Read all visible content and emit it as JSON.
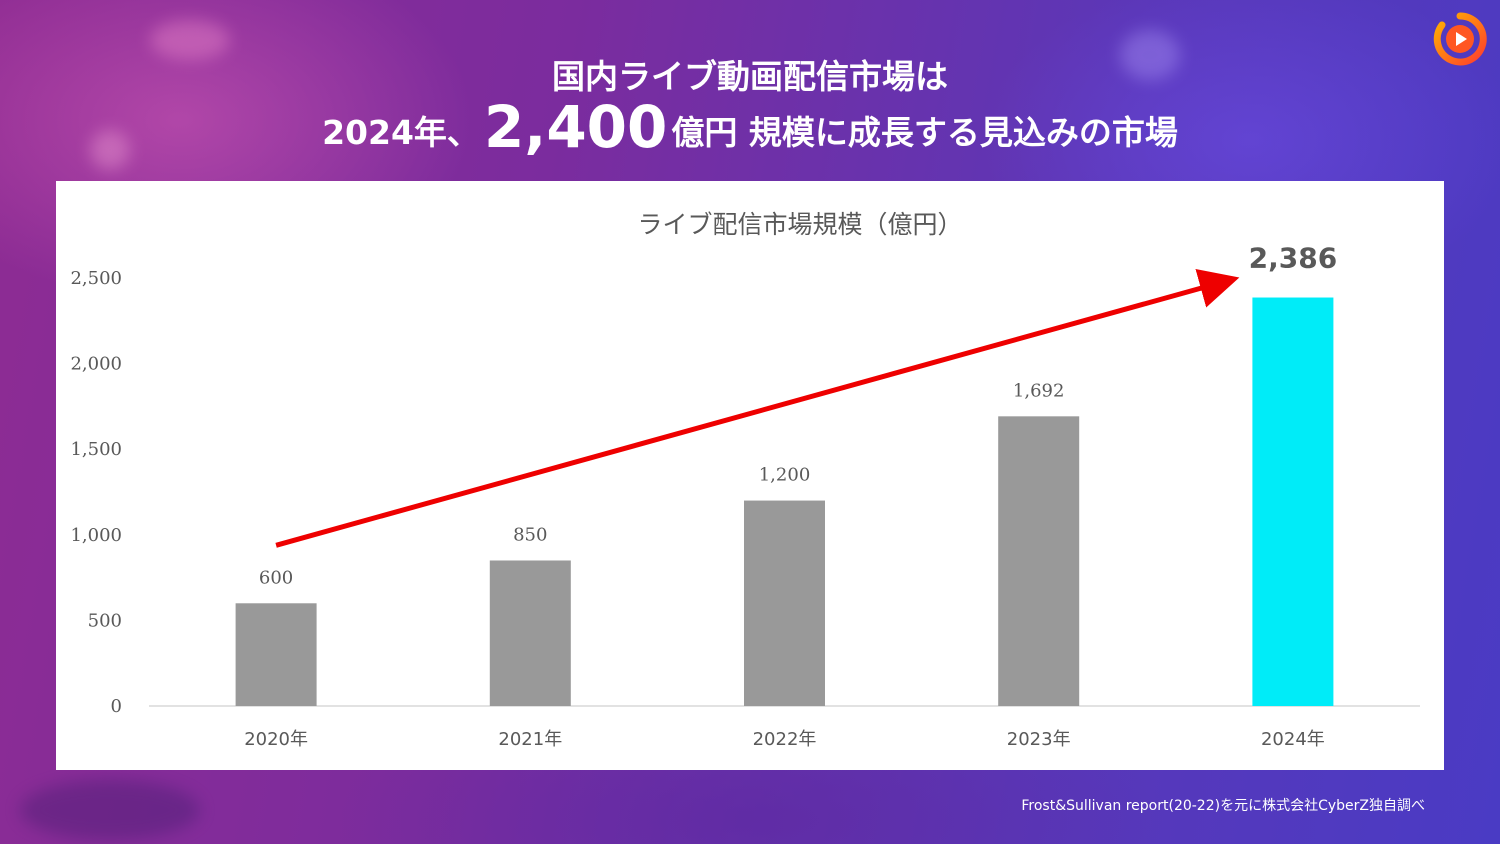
{
  "headline": {
    "line1": "国内ライブ動画配信市場は",
    "line2_prefix": "2024年、",
    "line2_big": "2,400",
    "line2_unit": "億円",
    "line2_suffix": "規模に成長する見込みの市場"
  },
  "logo_icon": "play-ring-logo-icon",
  "source": "Frost&Sullivan report(20-22)を元に株式会社CyberZ独自調べ",
  "colors": {
    "bar_default": "#999999",
    "bar_highlight": "#00ecf8",
    "arrow": "#ee0000",
    "axis_text": "#595959"
  },
  "chart_data": {
    "type": "bar",
    "title": "ライブ配信市場規模（億円）",
    "categories": [
      "2020年",
      "2021年",
      "2022年",
      "2023年",
      "2024年"
    ],
    "values": [
      600,
      850,
      1200,
      1692,
      2386
    ],
    "data_labels": [
      "600",
      "850",
      "1,200",
      "1,692",
      "2,386"
    ],
    "highlight_index": 4,
    "ylim": [
      0,
      2500
    ],
    "yticks": [
      0,
      500,
      1000,
      1500,
      2000,
      2500
    ],
    "ytick_labels": [
      "0",
      "500",
      "1,000",
      "1,500",
      "2,000",
      "2,500"
    ],
    "xlabel": "",
    "ylabel": "",
    "grid": false,
    "annotation": "trend-arrow from 2020年 to 2024年 (red, rising)"
  }
}
